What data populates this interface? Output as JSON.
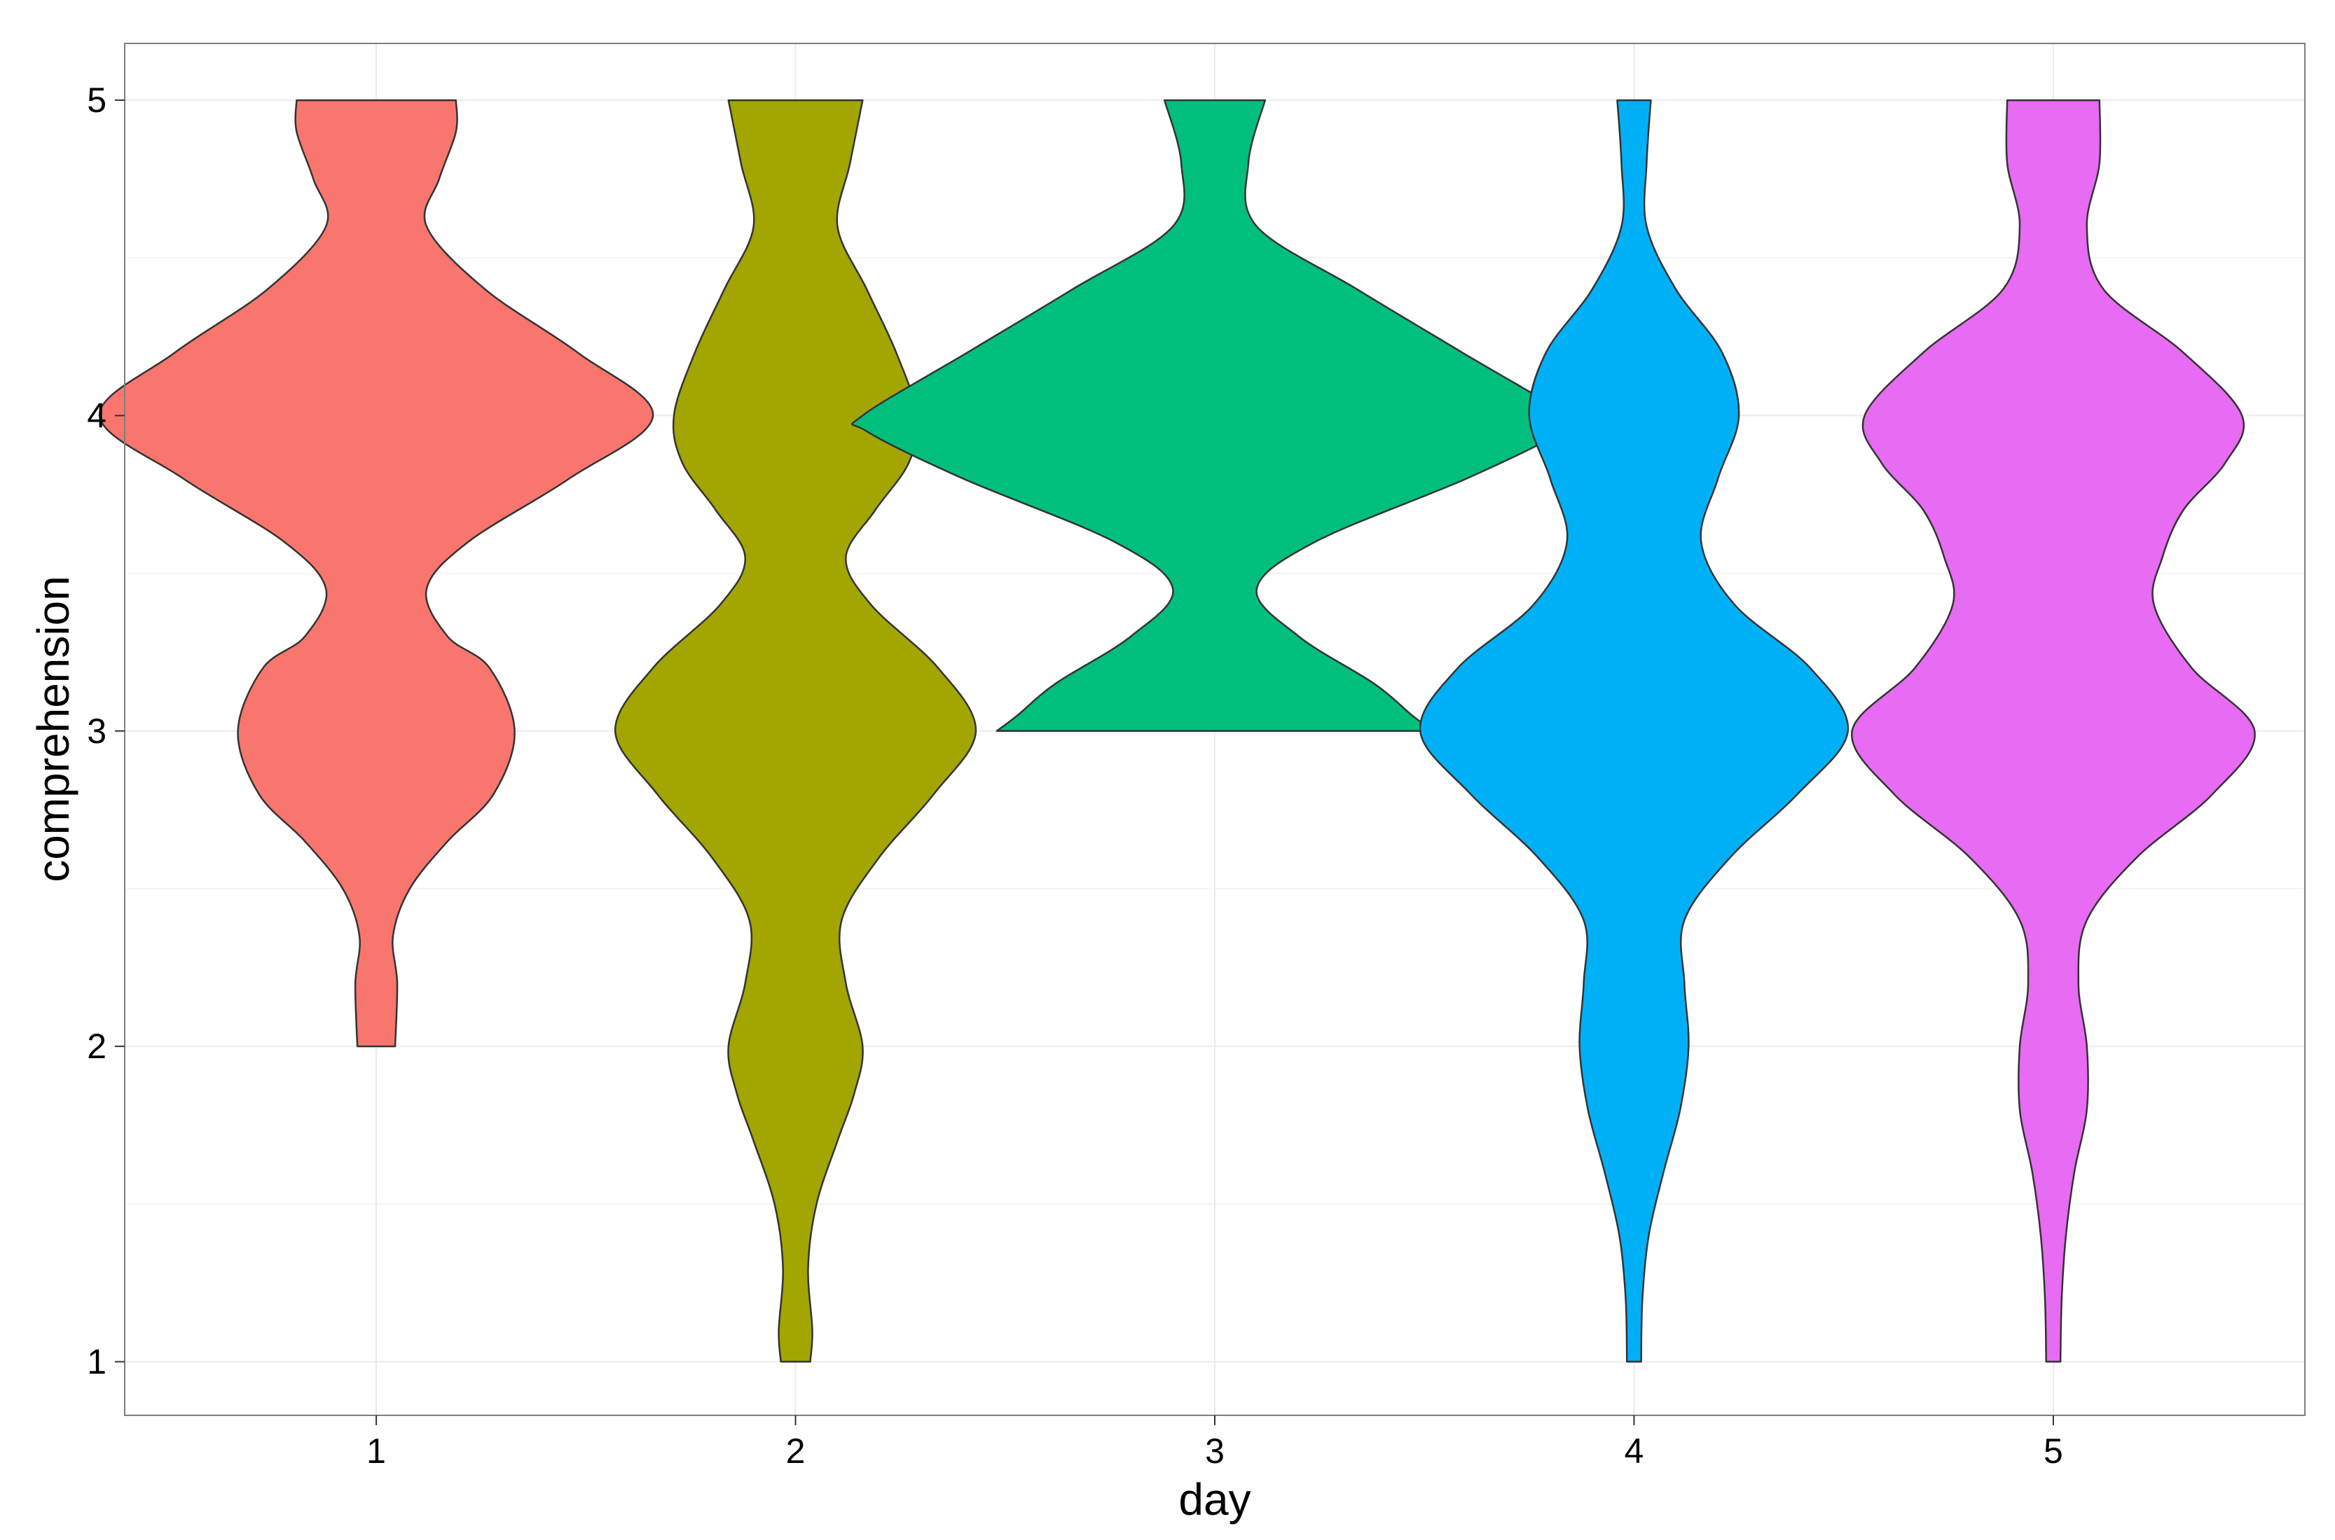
{
  "chart_data": {
    "type": "violin",
    "title": "",
    "xlabel": "day",
    "ylabel": "comprehension",
    "categories": [
      "1",
      "2",
      "3",
      "4",
      "5"
    ],
    "y_ticks": [
      "1",
      "2",
      "3",
      "4",
      "5"
    ],
    "ylim": [
      0.83,
      5.18
    ],
    "grid": true,
    "legend": "none",
    "colors": [
      "#F8766D",
      "#A3A500",
      "#00BF7D",
      "#00B0F6",
      "#E76BF3"
    ],
    "series": [
      {
        "category": "1",
        "min": 2.0,
        "max": 5.0,
        "density": [
          [
            2.0,
            0.045
          ],
          [
            2.2,
            0.05
          ],
          [
            2.35,
            0.04
          ],
          [
            2.5,
            0.08
          ],
          [
            2.65,
            0.17
          ],
          [
            2.8,
            0.28
          ],
          [
            3.0,
            0.33
          ],
          [
            3.2,
            0.27
          ],
          [
            3.3,
            0.17
          ],
          [
            3.45,
            0.12
          ],
          [
            3.6,
            0.22
          ],
          [
            3.8,
            0.46
          ],
          [
            4.0,
            0.66
          ],
          [
            4.2,
            0.48
          ],
          [
            4.4,
            0.26
          ],
          [
            4.6,
            0.12
          ],
          [
            4.75,
            0.15
          ],
          [
            4.9,
            0.19
          ],
          [
            5.0,
            0.19
          ]
        ]
      },
      {
        "category": "2",
        "min": 1.0,
        "max": 5.0,
        "density": [
          [
            1.0,
            0.035
          ],
          [
            1.1,
            0.04
          ],
          [
            1.3,
            0.03
          ],
          [
            1.5,
            0.05
          ],
          [
            1.7,
            0.1
          ],
          [
            1.85,
            0.14
          ],
          [
            2.0,
            0.16
          ],
          [
            2.2,
            0.12
          ],
          [
            2.4,
            0.11
          ],
          [
            2.6,
            0.2
          ],
          [
            2.8,
            0.33
          ],
          [
            3.0,
            0.43
          ],
          [
            3.2,
            0.34
          ],
          [
            3.4,
            0.18
          ],
          [
            3.55,
            0.12
          ],
          [
            3.7,
            0.19
          ],
          [
            3.85,
            0.27
          ],
          [
            4.0,
            0.29
          ],
          [
            4.2,
            0.24
          ],
          [
            4.4,
            0.17
          ],
          [
            4.6,
            0.1
          ],
          [
            4.8,
            0.13
          ],
          [
            5.0,
            0.16
          ]
        ]
      },
      {
        "category": "3",
        "min": 3.0,
        "max": 5.0,
        "density": [
          [
            3.0,
            0.52
          ],
          [
            3.05,
            0.47
          ],
          [
            3.15,
            0.38
          ],
          [
            3.3,
            0.2
          ],
          [
            3.45,
            0.1
          ],
          [
            3.6,
            0.24
          ],
          [
            3.8,
            0.6
          ],
          [
            3.95,
            0.83
          ],
          [
            4.0,
            0.84
          ],
          [
            4.2,
            0.59
          ],
          [
            4.4,
            0.34
          ],
          [
            4.6,
            0.1
          ],
          [
            4.8,
            0.08
          ],
          [
            5.0,
            0.12
          ]
        ]
      },
      {
        "category": "4",
        "min": 1.0,
        "max": 5.0,
        "density": [
          [
            1.0,
            0.017
          ],
          [
            1.2,
            0.02
          ],
          [
            1.4,
            0.035
          ],
          [
            1.6,
            0.07
          ],
          [
            1.8,
            0.11
          ],
          [
            2.0,
            0.13
          ],
          [
            2.2,
            0.12
          ],
          [
            2.4,
            0.12
          ],
          [
            2.6,
            0.23
          ],
          [
            2.8,
            0.39
          ],
          [
            3.0,
            0.51
          ],
          [
            3.2,
            0.42
          ],
          [
            3.4,
            0.24
          ],
          [
            3.6,
            0.16
          ],
          [
            3.8,
            0.2
          ],
          [
            4.0,
            0.25
          ],
          [
            4.2,
            0.21
          ],
          [
            4.4,
            0.1
          ],
          [
            4.6,
            0.03
          ],
          [
            4.8,
            0.03
          ],
          [
            5.0,
            0.04
          ]
        ]
      },
      {
        "category": "5",
        "min": 1.0,
        "max": 5.0,
        "density": [
          [
            1.0,
            0.017
          ],
          [
            1.2,
            0.02
          ],
          [
            1.4,
            0.03
          ],
          [
            1.6,
            0.05
          ],
          [
            1.8,
            0.08
          ],
          [
            2.0,
            0.08
          ],
          [
            2.2,
            0.06
          ],
          [
            2.4,
            0.08
          ],
          [
            2.6,
            0.2
          ],
          [
            2.8,
            0.38
          ],
          [
            3.0,
            0.48
          ],
          [
            3.2,
            0.33
          ],
          [
            3.4,
            0.24
          ],
          [
            3.55,
            0.26
          ],
          [
            3.7,
            0.31
          ],
          [
            3.85,
            0.41
          ],
          [
            4.0,
            0.45
          ],
          [
            4.2,
            0.31
          ],
          [
            4.4,
            0.12
          ],
          [
            4.6,
            0.08
          ],
          [
            4.8,
            0.11
          ],
          [
            5.0,
            0.11
          ]
        ]
      }
    ]
  }
}
